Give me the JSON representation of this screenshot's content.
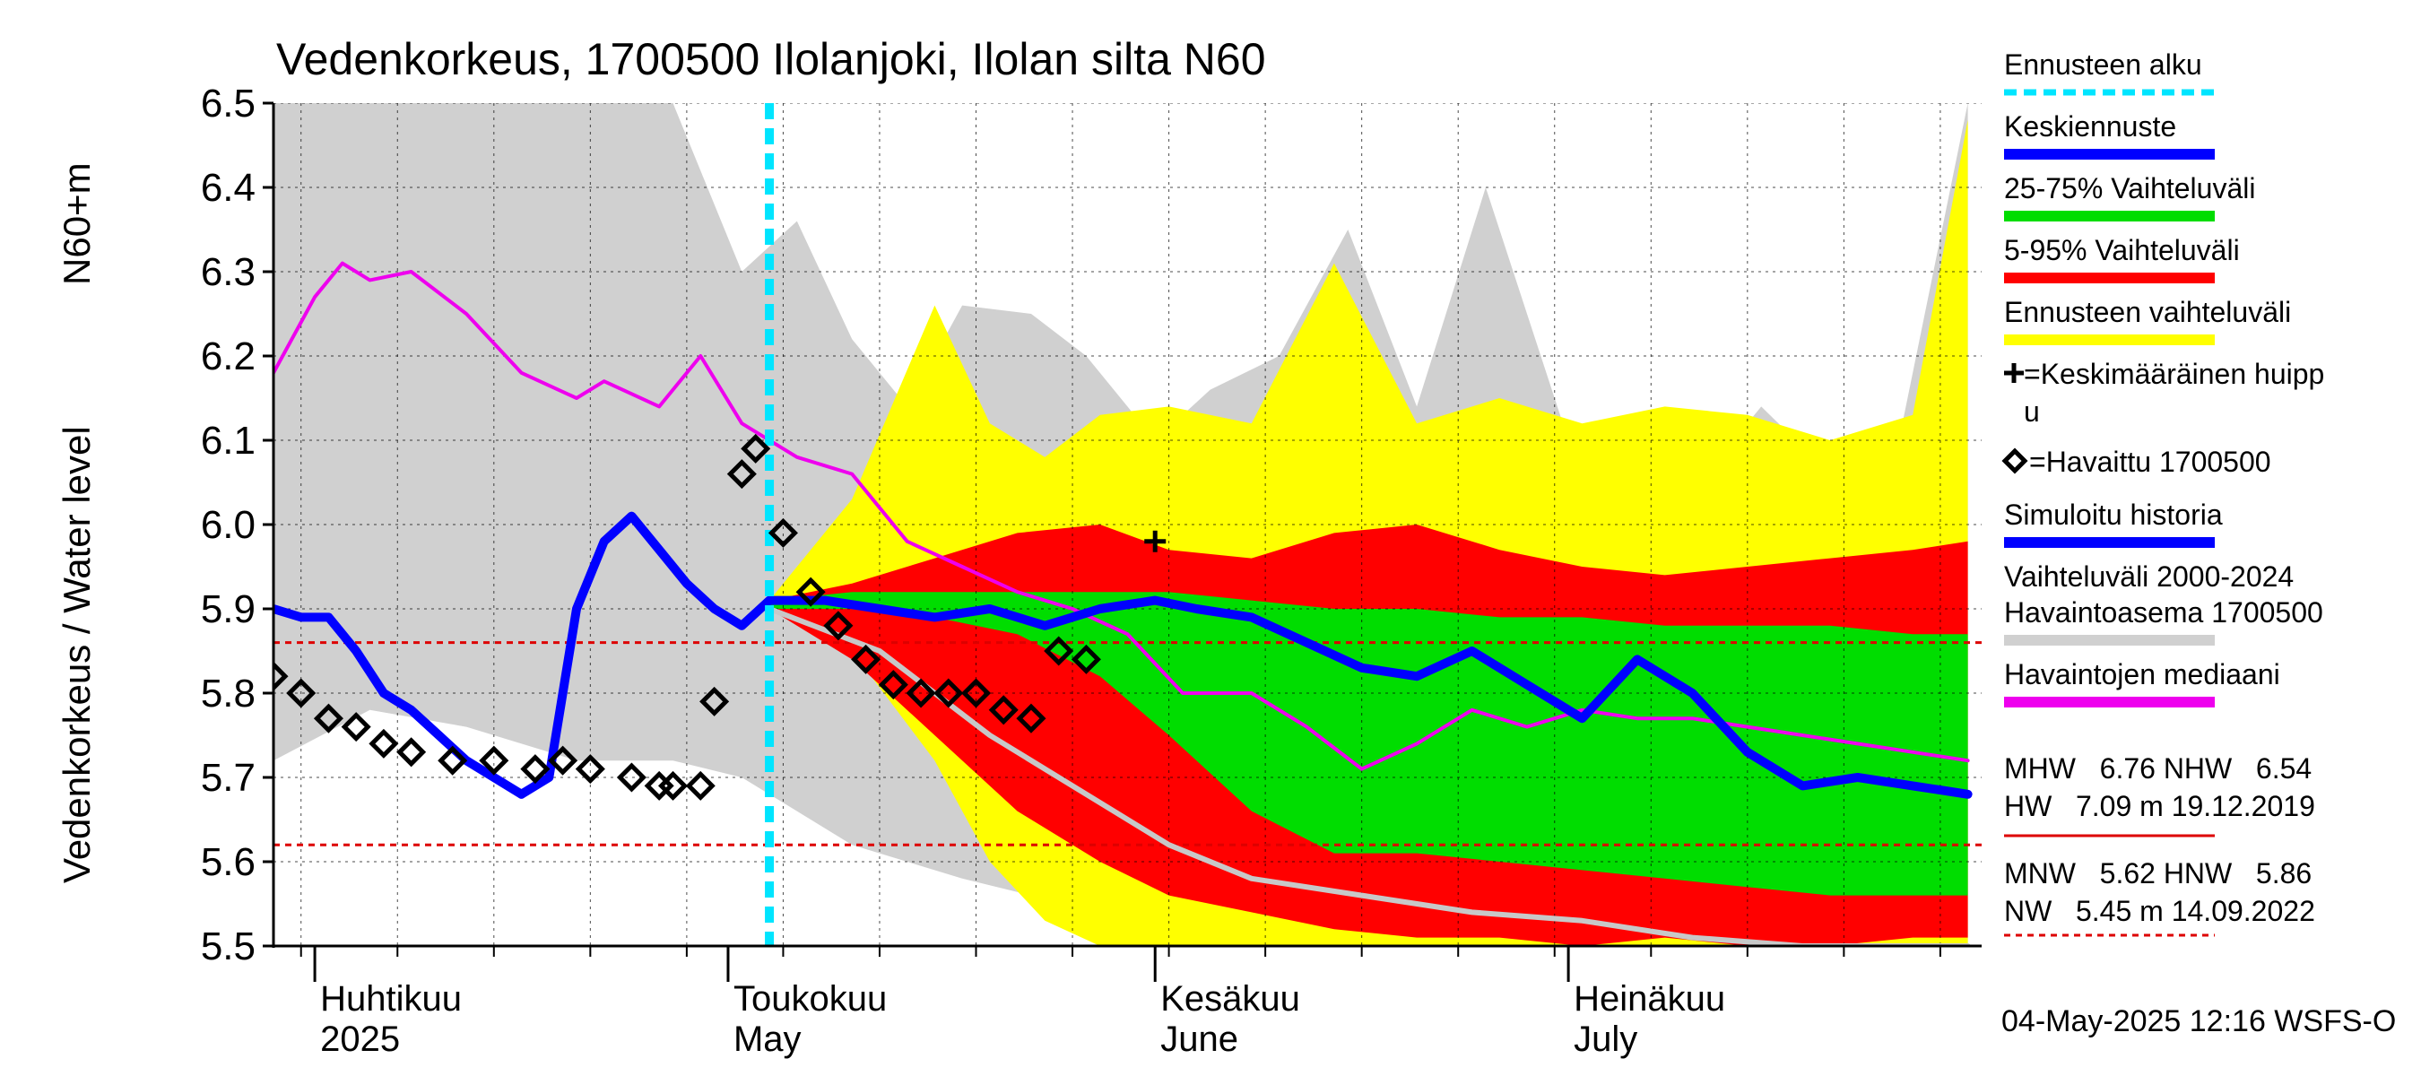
{
  "chart_data": {
    "type": "line",
    "title": "Vedenkorkeus, 1700500 Ilolanjoki, Ilolan silta N60",
    "ylabel_primary": "Vedenkorkeus / Water level",
    "ylabel_secondary": "N60+m",
    "ylim": [
      5.5,
      6.5
    ],
    "yticks": [
      "5.5",
      "5.6",
      "5.7",
      "5.8",
      "5.9",
      "6.0",
      "6.1",
      "6.2",
      "6.3",
      "6.4",
      "6.5"
    ],
    "xlim": [
      "2025-03-29",
      "2025-07-31"
    ],
    "month_labels": [
      {
        "date": "2025-04-01",
        "fi": "Huhtikuu",
        "en": "2025"
      },
      {
        "date": "2025-05-01",
        "fi": "Toukokuu",
        "en": "May"
      },
      {
        "date": "2025-06-01",
        "fi": "Kesäkuu",
        "en": "June"
      },
      {
        "date": "2025-07-01",
        "fi": "Heinäkuu",
        "en": "July"
      }
    ],
    "forecast_start": "2025-05-04",
    "timestamp": "04-May-2025 12:16 WSFS-O",
    "grid": true,
    "legend_position": "right",
    "colors": {
      "forecast_start": "#00e5ff",
      "mean_forecast": "#0000ff",
      "band_25_75": "#00dd00",
      "band_5_95": "#ff0000",
      "band_forecast": "#ffff00",
      "historical_range": "#d0d0d0",
      "median": "#ee00ee",
      "median_hist_line": "#c8c8c8",
      "ref_lines": "#dd0000"
    },
    "legend": [
      {
        "label": "Ennusteen alku",
        "type": "dash",
        "color": "#00e5ff"
      },
      {
        "label": "Keskiennuste",
        "type": "line",
        "color": "#0000ff"
      },
      {
        "label": "25-75% Vaihteluväli",
        "type": "line",
        "color": "#00dd00"
      },
      {
        "label": "5-95% Vaihteluväli",
        "type": "line",
        "color": "#ff0000"
      },
      {
        "label": "Ennusteen vaihteluväli",
        "type": "line",
        "color": "#ffff00"
      },
      {
        "label_lines": [
          "=Keskimääräinen huipp",
          "u"
        ],
        "type": "plus"
      },
      {
        "label": "=Havaittu 1700500",
        "type": "diamond"
      },
      {
        "label": "Simuloitu historia",
        "type": "line",
        "color": "#0000ff"
      },
      {
        "label_lines": [
          "Vaihteluväli 2000-2024",
          " Havaintoasema 1700500"
        ],
        "type": "line",
        "color": "#d0d0d0"
      },
      {
        "label": "Havaintojen mediaani",
        "type": "line",
        "color": "#ee00ee"
      }
    ],
    "stats_text": [
      "MHW   6.76 NHW   6.54",
      "HW   7.09 m 19.12.2019",
      "MNW   5.62 HNW   5.86",
      "NW   5.45 m 14.09.2022"
    ],
    "reference_lines": [
      {
        "name": "HNW",
        "value": 5.86
      },
      {
        "name": "MNW",
        "value": 5.62
      }
    ],
    "mean_peak": {
      "date": "2025-06-01",
      "value": 5.98
    },
    "series": [
      {
        "name": "Havaittu 1700500",
        "x": [
          "2025-03-29",
          "2025-03-31",
          "2025-04-02",
          "2025-04-04",
          "2025-04-06",
          "2025-04-08",
          "2025-04-11",
          "2025-04-14",
          "2025-04-17",
          "2025-04-19",
          "2025-04-21",
          "2025-04-24",
          "2025-04-26",
          "2025-04-27",
          "2025-04-29",
          "2025-04-30",
          "2025-05-02",
          "2025-05-03",
          "2025-05-05",
          "2025-05-07",
          "2025-05-09",
          "2025-05-11",
          "2025-05-13",
          "2025-05-15",
          "2025-05-17",
          "2025-05-19",
          "2025-05-21",
          "2025-05-23",
          "2025-05-25",
          "2025-05-27",
          "2025-05-29",
          "2025-05-31",
          "2025-06-02",
          "2025-06-03"
        ],
        "values": [
          5.82,
          5.8,
          5.77,
          5.76,
          5.74,
          5.73,
          5.72,
          5.72,
          5.71,
          5.72,
          5.71,
          5.7,
          5.69,
          5.69,
          5.69,
          5.79,
          6.06,
          6.09,
          5.99,
          5.92,
          5.88,
          5.84,
          5.81,
          5.8,
          5.8,
          5.8,
          5.78,
          5.77,
          5.85,
          5.84,
          null,
          null,
          null,
          null
        ]
      },
      {
        "name": "Simuloitu historia",
        "x": [
          "2025-03-29",
          "2025-03-31",
          "2025-04-02",
          "2025-04-04",
          "2025-04-06",
          "2025-04-08",
          "2025-04-10",
          "2025-04-12",
          "2025-04-14",
          "2025-04-16",
          "2025-04-18",
          "2025-04-20",
          "2025-04-22",
          "2025-04-24",
          "2025-04-26",
          "2025-04-28",
          "2025-04-30",
          "2025-05-02",
          "2025-05-04"
        ],
        "values": [
          5.9,
          5.89,
          5.89,
          5.85,
          5.8,
          5.78,
          5.75,
          5.72,
          5.7,
          5.68,
          5.7,
          5.9,
          5.98,
          6.01,
          5.97,
          5.93,
          5.9,
          5.88,
          5.91
        ]
      },
      {
        "name": "Keskiennuste",
        "x": [
          "2025-05-04",
          "2025-05-08",
          "2025-05-12",
          "2025-05-16",
          "2025-05-20",
          "2025-05-24",
          "2025-05-28",
          "2025-06-01",
          "2025-06-04",
          "2025-06-08",
          "2025-06-12",
          "2025-06-16",
          "2025-06-20",
          "2025-06-24",
          "2025-06-28",
          "2025-07-02",
          "2025-07-06",
          "2025-07-10",
          "2025-07-14",
          "2025-07-18",
          "2025-07-22",
          "2025-07-26",
          "2025-07-30"
        ],
        "values": [
          5.91,
          5.91,
          5.9,
          5.89,
          5.9,
          5.88,
          5.9,
          5.91,
          5.9,
          5.89,
          5.86,
          5.83,
          5.82,
          5.85,
          5.81,
          5.77,
          5.84,
          5.8,
          5.73,
          5.69,
          5.7,
          5.69,
          5.68
        ]
      },
      {
        "name": "Havaintojen mediaani",
        "x": [
          "2025-03-29",
          "2025-04-01",
          "2025-04-03",
          "2025-04-05",
          "2025-04-08",
          "2025-04-12",
          "2025-04-16",
          "2025-04-20",
          "2025-04-22",
          "2025-04-26",
          "2025-04-29",
          "2025-05-02",
          "2025-05-06",
          "2025-05-10",
          "2025-05-14",
          "2025-05-18",
          "2025-05-22",
          "2025-05-26",
          "2025-05-30",
          "2025-06-03",
          "2025-06-08",
          "2025-06-12",
          "2025-06-16",
          "2025-06-20",
          "2025-06-24",
          "2025-06-28",
          "2025-07-02",
          "2025-07-06",
          "2025-07-10",
          "2025-07-14",
          "2025-07-18",
          "2025-07-22",
          "2025-07-26",
          "2025-07-30"
        ],
        "values": [
          6.18,
          6.27,
          6.31,
          6.29,
          6.3,
          6.25,
          6.18,
          6.15,
          6.17,
          6.14,
          6.2,
          6.12,
          6.08,
          6.06,
          5.98,
          5.95,
          5.92,
          5.9,
          5.87,
          5.8,
          5.8,
          5.76,
          5.71,
          5.74,
          5.78,
          5.76,
          5.78,
          5.77,
          5.77,
          5.76,
          5.75,
          5.74,
          5.73,
          5.72
        ]
      },
      {
        "name": "Vaihteluväli 2000-2024 (alaraja)",
        "x": [
          "2025-05-04",
          "2025-05-12",
          "2025-05-20",
          "2025-05-28",
          "2025-06-02",
          "2025-06-08",
          "2025-06-16",
          "2025-06-24",
          "2025-07-02",
          "2025-07-10",
          "2025-07-18",
          "2025-07-30"
        ],
        "values": [
          5.9,
          5.85,
          5.75,
          5.67,
          5.62,
          5.58,
          5.56,
          5.54,
          5.53,
          5.51,
          5.5,
          5.5
        ]
      }
    ],
    "bands": [
      {
        "name": "Vaihteluväli 2000-2024",
        "x": [
          "2025-03-29",
          "2025-04-05",
          "2025-04-12",
          "2025-04-20",
          "2025-04-27",
          "2025-05-02",
          "2025-05-06",
          "2025-05-10",
          "2025-05-14",
          "2025-05-18",
          "2025-05-23",
          "2025-05-27",
          "2025-06-01",
          "2025-06-05",
          "2025-06-10",
          "2025-06-15",
          "2025-06-20",
          "2025-06-25",
          "2025-07-01",
          "2025-07-05",
          "2025-07-10",
          "2025-07-15",
          "2025-07-20",
          "2025-07-25",
          "2025-07-30"
        ],
        "upper": [
          6.5,
          6.5,
          6.5,
          6.5,
          6.5,
          6.3,
          6.36,
          6.22,
          6.14,
          6.26,
          6.25,
          6.2,
          6.1,
          6.16,
          6.2,
          6.35,
          6.14,
          6.4,
          6.1,
          6.1,
          6.04,
          6.14,
          6.06,
          6.1,
          6.5
        ],
        "lower": [
          5.72,
          5.78,
          5.76,
          5.72,
          5.72,
          5.7,
          5.66,
          5.62,
          5.6,
          5.58,
          5.56,
          5.55,
          5.55,
          5.54,
          5.53,
          5.52,
          5.51,
          5.5,
          5.5,
          5.5,
          5.5,
          5.5,
          5.5,
          5.5,
          5.5
        ]
      },
      {
        "name": "Ennusteen vaihteluväli",
        "x": [
          "2025-05-04",
          "2025-05-10",
          "2025-05-16",
          "2025-05-20",
          "2025-05-24",
          "2025-05-28",
          "2025-06-02",
          "2025-06-08",
          "2025-06-14",
          "2025-06-20",
          "2025-06-26",
          "2025-07-02",
          "2025-07-08",
          "2025-07-14",
          "2025-07-20",
          "2025-07-26",
          "2025-07-30"
        ],
        "upper": [
          5.91,
          6.03,
          6.26,
          6.12,
          6.08,
          6.13,
          6.14,
          6.12,
          6.31,
          6.12,
          6.15,
          6.12,
          6.14,
          6.13,
          6.1,
          6.13,
          6.48
        ],
        "lower": [
          5.9,
          5.85,
          5.72,
          5.6,
          5.53,
          5.5,
          5.5,
          5.5,
          5.5,
          5.5,
          5.5,
          5.5,
          5.5,
          5.5,
          5.5,
          5.5,
          5.5
        ]
      },
      {
        "name": "5-95% Vaihteluväli",
        "x": [
          "2025-05-04",
          "2025-05-10",
          "2025-05-16",
          "2025-05-22",
          "2025-05-28",
          "2025-06-02",
          "2025-06-08",
          "2025-06-14",
          "2025-06-20",
          "2025-06-26",
          "2025-07-02",
          "2025-07-08",
          "2025-07-14",
          "2025-07-20",
          "2025-07-26",
          "2025-07-30"
        ],
        "upper": [
          5.91,
          5.93,
          5.96,
          5.99,
          6.0,
          5.97,
          5.96,
          5.99,
          6.0,
          5.97,
          5.95,
          5.94,
          5.95,
          5.96,
          5.97,
          5.98
        ],
        "lower": [
          5.9,
          5.84,
          5.75,
          5.66,
          5.6,
          5.56,
          5.54,
          5.52,
          5.51,
          5.51,
          5.5,
          5.51,
          5.5,
          5.5,
          5.51,
          5.51
        ]
      },
      {
        "name": "25-75% Vaihteluväli",
        "x": [
          "2025-05-04",
          "2025-05-10",
          "2025-05-16",
          "2025-05-22",
          "2025-05-28",
          "2025-06-02",
          "2025-06-08",
          "2025-06-14",
          "2025-06-20",
          "2025-06-26",
          "2025-07-02",
          "2025-07-08",
          "2025-07-14",
          "2025-07-20",
          "2025-07-26",
          "2025-07-30"
        ],
        "upper": [
          5.91,
          5.92,
          5.92,
          5.92,
          5.92,
          5.92,
          5.91,
          5.9,
          5.9,
          5.89,
          5.89,
          5.88,
          5.88,
          5.88,
          5.87,
          5.87
        ],
        "lower": [
          5.9,
          5.9,
          5.89,
          5.87,
          5.82,
          5.75,
          5.66,
          5.61,
          5.61,
          5.6,
          5.59,
          5.58,
          5.57,
          5.56,
          5.56,
          5.56
        ]
      }
    ]
  }
}
